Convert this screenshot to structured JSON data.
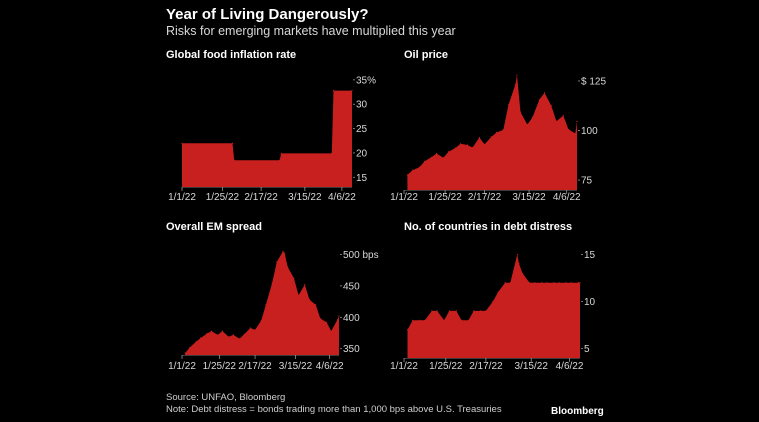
{
  "header": {
    "title": "Year of Living Dangerously?",
    "subtitle": "Risks for emerging markets have multiplied this year"
  },
  "footer": {
    "source": "Source: UNFAO, Bloomberg",
    "note": "Note: Debt distress = bonds trading more than 1,000 bps above U.S. Treasuries",
    "brand": "Bloomberg"
  },
  "colors": {
    "fill": "#c8201e",
    "background": "#000000",
    "text": "#ffffff"
  },
  "chart_data": [
    {
      "type": "area",
      "title": "Global food inflation rate",
      "x_tick_labels": [
        "1/1/22",
        "1/25/22",
        "2/17/22",
        "3/15/22",
        "4/6/22"
      ],
      "y_ticks": [
        15,
        20,
        25,
        30,
        35
      ],
      "y_tick_labels": [
        "15",
        "20",
        "25",
        "30",
        "35%"
      ],
      "ylim": [
        13,
        36
      ],
      "x": [
        "1/1/22",
        "1/31/22",
        "2/1/22",
        "2/28/22",
        "3/1/22",
        "3/31/22",
        "4/1/22",
        "4/12/22"
      ],
      "values": [
        22.0,
        22.0,
        18.5,
        18.5,
        19.9,
        19.9,
        32.8,
        32.8
      ]
    },
    {
      "type": "area",
      "title": "Oil price",
      "x_tick_labels": [
        "1/1/22",
        "1/25/22",
        "2/17/22",
        "3/15/22",
        "4/6/22"
      ],
      "y_ticks": [
        75,
        100,
        125
      ],
      "y_tick_labels": [
        "75",
        "100",
        "$ 125"
      ],
      "ylim": [
        70,
        128
      ],
      "x": [
        "1/3/22",
        "1/6/22",
        "1/10/22",
        "1/13/22",
        "1/17/22",
        "1/20/22",
        "1/24/22",
        "1/27/22",
        "1/31/22",
        "2/3/22",
        "2/7/22",
        "2/10/22",
        "2/14/22",
        "2/17/22",
        "2/21/22",
        "2/24/22",
        "2/28/22",
        "3/3/22",
        "3/7/22",
        "3/8/22",
        "3/10/22",
        "3/14/22",
        "3/17/22",
        "3/21/22",
        "3/24/22",
        "3/28/22",
        "3/31/22",
        "4/4/22",
        "4/7/22",
        "4/11/22",
        "4/12/22"
      ],
      "values": [
        77.6,
        80.0,
        81.5,
        84.5,
        86.5,
        88.4,
        86.3,
        89.3,
        91.2,
        93.3,
        92.7,
        91.4,
        96.5,
        93.0,
        96.8,
        99.0,
        100.3,
        113.0,
        123.0,
        127.9,
        109.3,
        103.0,
        106.6,
        115.5,
        119.0,
        112.5,
        104.7,
        107.5,
        100.6,
        98.5,
        104.6
      ]
    },
    {
      "type": "area",
      "title": "Overall EM spread",
      "x_tick_labels": [
        "1/1/22",
        "1/25/22",
        "2/17/22",
        "3/15/22",
        "4/6/22"
      ],
      "y_ticks": [
        350,
        400,
        450,
        500
      ],
      "y_tick_labels": [
        "350",
        "400",
        "450",
        "500 bps"
      ],
      "ylim": [
        340,
        515
      ],
      "x": [
        "1/3/22",
        "1/6/22",
        "1/10/22",
        "1/13/22",
        "1/17/22",
        "1/20/22",
        "1/24/22",
        "1/27/22",
        "1/31/22",
        "2/3/22",
        "2/7/22",
        "2/10/22",
        "2/14/22",
        "2/17/22",
        "2/21/22",
        "2/24/22",
        "2/28/22",
        "3/3/22",
        "3/7/22",
        "3/8/22",
        "3/10/22",
        "3/14/22",
        "3/17/22",
        "3/21/22",
        "3/24/22",
        "3/28/22",
        "3/31/22",
        "4/4/22",
        "4/7/22",
        "4/11/22",
        "4/12/22"
      ],
      "values": [
        343,
        352,
        361,
        367,
        374,
        378,
        372,
        378,
        369,
        372,
        366,
        373,
        383,
        380,
        395,
        420,
        455,
        488,
        505,
        502,
        480,
        462,
        435,
        452,
        428,
        420,
        398,
        392,
        378,
        396,
        402
      ]
    },
    {
      "type": "area",
      "title": "No. of countries in debt distress",
      "x_tick_labels": [
        "1/1/22",
        "1/25/22",
        "2/17/22",
        "3/15/22",
        "4/6/22"
      ],
      "y_ticks": [
        5,
        10,
        15
      ],
      "y_tick_labels": [
        "5",
        "10",
        "15"
      ],
      "ylim": [
        4,
        16
      ],
      "x": [
        "1/3/22",
        "1/6/22",
        "1/10/22",
        "1/13/22",
        "1/17/22",
        "1/20/22",
        "1/24/22",
        "1/27/22",
        "1/31/22",
        "2/3/22",
        "2/7/22",
        "2/10/22",
        "2/14/22",
        "2/17/22",
        "2/21/22",
        "2/24/22",
        "2/28/22",
        "3/3/22",
        "3/7/22",
        "3/8/22",
        "3/10/22",
        "3/14/22",
        "3/17/22",
        "3/21/22",
        "3/24/22",
        "3/28/22",
        "3/31/22",
        "4/4/22",
        "4/7/22",
        "4/11/22",
        "4/12/22"
      ],
      "values": [
        7,
        8,
        8,
        8,
        9,
        9,
        8,
        9,
        9,
        8,
        8,
        9,
        9,
        9,
        10,
        11,
        12,
        12,
        15,
        14,
        13,
        12,
        12,
        12,
        12,
        12,
        12,
        12,
        12,
        12,
        12
      ]
    }
  ]
}
